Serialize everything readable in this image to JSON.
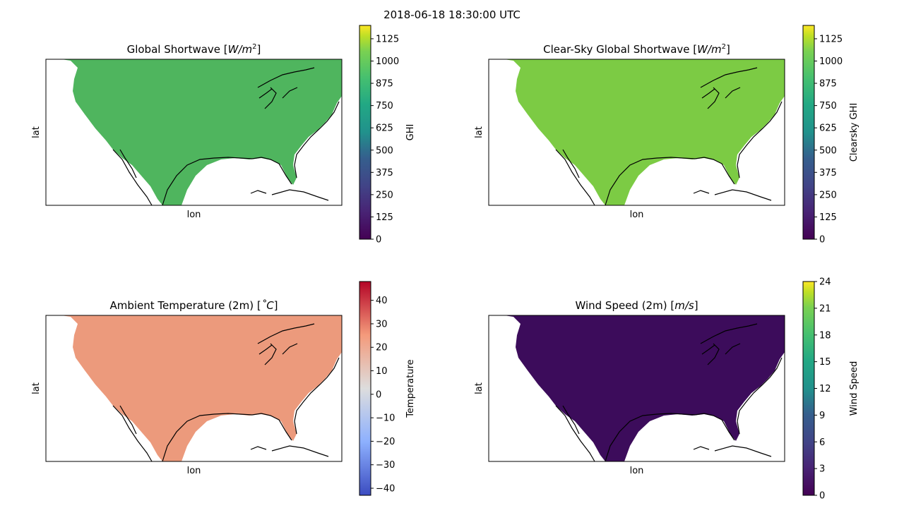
{
  "figure": {
    "suptitle": "2018-06-18 18:30:00 UTC"
  },
  "colors": {
    "land_ghi": "#4fb55e",
    "land_clearsky": "#7ccb44",
    "land_temp": "#ec9a7c",
    "land_wind": "#3c0c5b",
    "coastline": "#000000",
    "ocean": "#ffffff"
  },
  "chart_data": [
    {
      "type": "heatmap",
      "title": "Global Shortwave [W/m²]",
      "title_main": "Global Shortwave [",
      "title_var": "W/m",
      "title_sup": "2",
      "title_end": "]",
      "xlabel": "lon",
      "ylabel": "lat",
      "colorbar_label": "GHI",
      "colormap": "viridis",
      "vmin": 0,
      "vmax": 1200,
      "ticks": [
        0,
        125,
        250,
        375,
        500,
        625,
        750,
        875,
        1000,
        1125
      ],
      "tick_labels": [
        "0",
        "125",
        "250",
        "375",
        "500",
        "625",
        "750",
        "875",
        "1000",
        "1125"
      ]
    },
    {
      "type": "heatmap",
      "title": "Clear-Sky Global Shortwave [W/m²]",
      "title_main": "Clear-Sky Global Shortwave [",
      "title_var": "W/m",
      "title_sup": "2",
      "title_end": "]",
      "xlabel": "lon",
      "ylabel": "lat",
      "colorbar_label": "Clearsky GHI",
      "colormap": "viridis",
      "vmin": 0,
      "vmax": 1200,
      "ticks": [
        0,
        125,
        250,
        375,
        500,
        625,
        750,
        875,
        1000,
        1125
      ],
      "tick_labels": [
        "0",
        "125",
        "250",
        "375",
        "500",
        "625",
        "750",
        "875",
        "1000",
        "1125"
      ]
    },
    {
      "type": "heatmap",
      "title": "Ambient Temperature (2m) [°C]",
      "title_main": "Ambient Temperature (2m) [",
      "title_var": "˚C",
      "title_sup": "",
      "title_end": "]",
      "xlabel": "lon",
      "ylabel": "lat",
      "colorbar_label": "Temperature",
      "colormap": "coolwarm",
      "vmin": -43,
      "vmax": 48,
      "ticks": [
        -40,
        -30,
        -20,
        -10,
        0,
        10,
        20,
        30,
        40
      ],
      "tick_labels": [
        "−40",
        "−30",
        "−20",
        "−10",
        "0",
        "10",
        "20",
        "30",
        "40"
      ]
    },
    {
      "type": "heatmap",
      "title": "Wind Speed (2m) [m/s]",
      "title_main": "Wind Speed (2m) [",
      "title_var": "m/s",
      "title_sup": "",
      "title_end": "]",
      "xlabel": "lon",
      "ylabel": "lat",
      "colorbar_label": "Wind Speed",
      "colormap": "viridis",
      "vmin": 0,
      "vmax": 24,
      "ticks": [
        0,
        3,
        6,
        9,
        12,
        15,
        18,
        21,
        24
      ],
      "tick_labels": [
        "0",
        "3",
        "6",
        "9",
        "12",
        "15",
        "18",
        "21",
        "24"
      ]
    }
  ]
}
